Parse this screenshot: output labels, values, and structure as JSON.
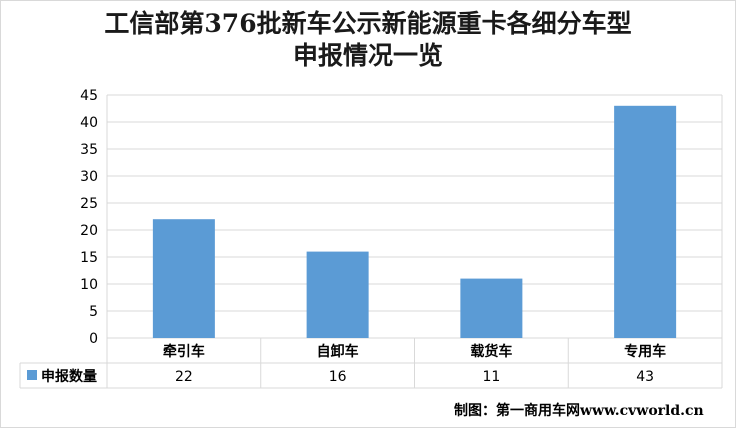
{
  "title_line1": "工信部第376批新车公示新能源重卡各细分车型",
  "title_line2": "申报情况一览",
  "credit": "制图：第一商用车网www.cvworld.cn",
  "colors": {
    "bar": "#5b9bd5",
    "grid": "#d9d9d9",
    "axis": "#bfbfbf"
  },
  "chart_data": {
    "type": "bar",
    "categories": [
      "牵引车",
      "自卸车",
      "载货车",
      "专用车"
    ],
    "series": [
      {
        "name": "申报数量",
        "values": [
          22,
          16,
          11,
          43
        ]
      }
    ],
    "ylim": [
      0,
      45
    ],
    "yticks": [
      0,
      5,
      10,
      15,
      20,
      25,
      30,
      35,
      40,
      45
    ],
    "grid": true,
    "legend": "data-table",
    "xlabel": "",
    "ylabel": ""
  }
}
